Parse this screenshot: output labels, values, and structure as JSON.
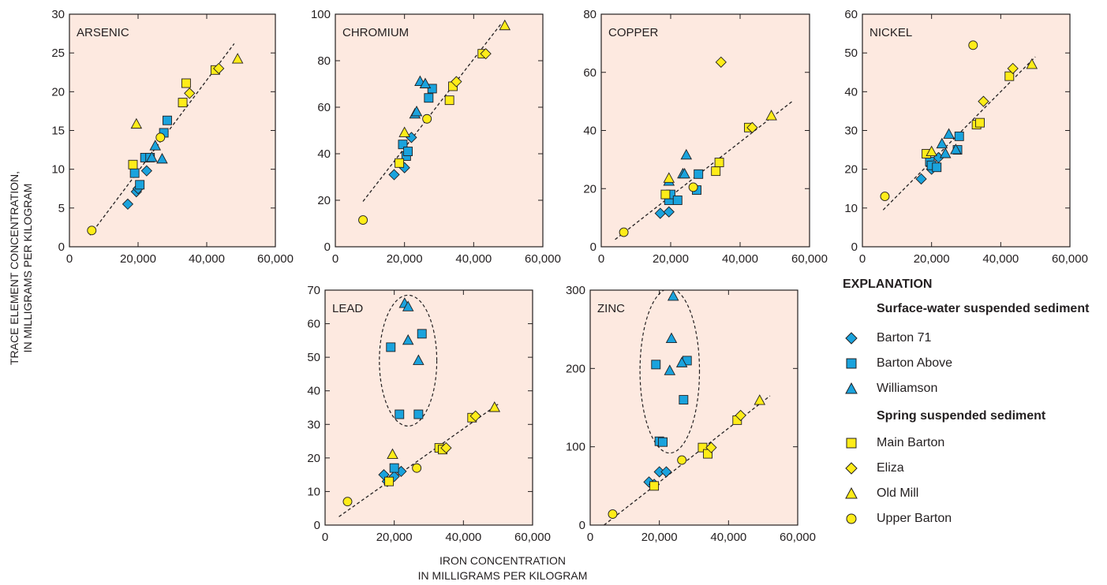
{
  "chart_data": [
    {
      "type": "scatter",
      "title": "ARSENIC",
      "xlim": [
        0,
        60000
      ],
      "ylim": [
        0,
        30
      ],
      "xticks": [
        "0",
        "20,000",
        "40,000",
        "60,000"
      ],
      "yticks": [
        "0",
        "5",
        "10",
        "15",
        "20",
        "25",
        "30"
      ],
      "trendline": [
        [
          6000,
          1.5
        ],
        [
          48000,
          26.2
        ]
      ],
      "ellipse": null,
      "series": [
        {
          "name": "Barton 71",
          "marker": "diamond",
          "points": [
            [
              17000,
              5.5
            ],
            [
              19500,
              7.1
            ],
            [
              20000,
              7.5
            ],
            [
              22500,
              9.8
            ]
          ]
        },
        {
          "name": "Barton Above",
          "marker": "square",
          "points": [
            [
              19000,
              9.5
            ],
            [
              20500,
              8.0
            ],
            [
              22000,
              11.5
            ],
            [
              23500,
              11.5
            ],
            [
              27500,
              14.7
            ],
            [
              28500,
              16.3
            ]
          ]
        },
        {
          "name": "Williamson",
          "marker": "triangle",
          "points": [
            [
              24000,
              11.5
            ],
            [
              25000,
              13.0
            ],
            [
              27000,
              11.3
            ]
          ]
        },
        {
          "name": "Main Barton",
          "marker": "square",
          "points": [
            [
              18500,
              10.6
            ],
            [
              33000,
              18.6
            ],
            [
              34000,
              21.1
            ],
            [
              42500,
              22.8
            ]
          ]
        },
        {
          "name": "Eliza",
          "marker": "diamond",
          "points": [
            [
              35000,
              19.8
            ],
            [
              43500,
              23.0
            ]
          ]
        },
        {
          "name": "Old Mill",
          "marker": "triangle",
          "points": [
            [
              19500,
              15.8
            ],
            [
              49000,
              24.2
            ]
          ]
        },
        {
          "name": "Upper Barton",
          "marker": "circle",
          "points": [
            [
              6500,
              2.1
            ],
            [
              26500,
              14.1
            ]
          ]
        }
      ]
    },
    {
      "type": "scatter",
      "title": "CHROMIUM",
      "xlim": [
        0,
        60000
      ],
      "ylim": [
        0,
        100
      ],
      "xticks": [
        "0",
        "20,000",
        "40,000",
        "60,000"
      ],
      "yticks": [
        "0",
        "20",
        "40",
        "60",
        "80",
        "100"
      ],
      "trendline": [
        [
          8000,
          19.5
        ],
        [
          48000,
          96
        ]
      ],
      "ellipse": null,
      "series": [
        {
          "name": "Barton 71",
          "marker": "diamond",
          "points": [
            [
              17000,
              31
            ],
            [
              20000,
              34
            ],
            [
              22000,
              47
            ]
          ]
        },
        {
          "name": "Barton Above",
          "marker": "square",
          "points": [
            [
              19500,
              44
            ],
            [
              20500,
              39
            ],
            [
              21000,
              41
            ],
            [
              27000,
              64
            ],
            [
              28000,
              68
            ]
          ]
        },
        {
          "name": "Williamson",
          "marker": "triangle",
          "points": [
            [
              23000,
              57
            ],
            [
              23500,
              58
            ],
            [
              24500,
              71
            ],
            [
              26000,
              70
            ]
          ]
        },
        {
          "name": "Main Barton",
          "marker": "square",
          "points": [
            [
              18500,
              36
            ],
            [
              33000,
              63
            ],
            [
              34000,
              69
            ],
            [
              42500,
              83
            ]
          ]
        },
        {
          "name": "Eliza",
          "marker": "diamond",
          "points": [
            [
              35000,
              71
            ],
            [
              43500,
              83
            ]
          ]
        },
        {
          "name": "Old Mill",
          "marker": "triangle",
          "points": [
            [
              20000,
              49
            ],
            [
              49000,
              95
            ]
          ]
        },
        {
          "name": "Upper Barton",
          "marker": "circle",
          "points": [
            [
              8000,
              11.5
            ],
            [
              26500,
              55
            ]
          ]
        }
      ]
    },
    {
      "type": "scatter",
      "title": "COPPER",
      "xlim": [
        0,
        60000
      ],
      "ylim": [
        0,
        80
      ],
      "xticks": [
        "0",
        "20,000",
        "40,000",
        "60,000"
      ],
      "yticks": [
        "0",
        "20",
        "40",
        "60",
        "80"
      ],
      "trendline": [
        [
          4000,
          2.5
        ],
        [
          55000,
          50
        ]
      ],
      "ellipse": null,
      "series": [
        {
          "name": "Barton 71",
          "marker": "diamond",
          "points": [
            [
              17000,
              11.5
            ],
            [
              19500,
              12.0
            ]
          ]
        },
        {
          "name": "Barton Above",
          "marker": "square",
          "points": [
            [
              19500,
              16.0
            ],
            [
              20000,
              18.0
            ],
            [
              22000,
              16.0
            ],
            [
              27500,
              19.5
            ],
            [
              28000,
              25.0
            ]
          ]
        },
        {
          "name": "Williamson",
          "marker": "triangle",
          "points": [
            [
              19500,
              22.5
            ],
            [
              23500,
              25.0
            ],
            [
              24000,
              25.0
            ],
            [
              24500,
              31.5
            ]
          ]
        },
        {
          "name": "Main Barton",
          "marker": "square",
          "points": [
            [
              18500,
              18.0
            ],
            [
              33000,
              26.0
            ],
            [
              34000,
              29.0
            ],
            [
              42500,
              41.0
            ]
          ]
        },
        {
          "name": "Eliza",
          "marker": "diamond",
          "points": [
            [
              34500,
              63.5
            ],
            [
              43500,
              41.0
            ]
          ]
        },
        {
          "name": "Old Mill",
          "marker": "triangle",
          "points": [
            [
              19500,
              23.5
            ],
            [
              49000,
              45.0
            ]
          ]
        },
        {
          "name": "Upper Barton",
          "marker": "circle",
          "points": [
            [
              6500,
              5.0
            ],
            [
              26500,
              20.5
            ]
          ]
        }
      ]
    },
    {
      "type": "scatter",
      "title": "NICKEL",
      "xlim": [
        0,
        60000
      ],
      "ylim": [
        0,
        60
      ],
      "xticks": [
        "0",
        "20,000",
        "40,000",
        "60,000"
      ],
      "yticks": [
        "0",
        "10",
        "20",
        "30",
        "40",
        "50",
        "60"
      ],
      "trendline": [
        [
          6000,
          9.5
        ],
        [
          50000,
          49
        ]
      ],
      "ellipse": null,
      "series": [
        {
          "name": "Barton 71",
          "marker": "diamond",
          "points": [
            [
              17000,
              17.5
            ],
            [
              20000,
              20.0
            ],
            [
              22000,
              23.0
            ]
          ]
        },
        {
          "name": "Barton Above",
          "marker": "square",
          "points": [
            [
              19500,
              22.0
            ],
            [
              20000,
              21.0
            ],
            [
              21500,
              20.5
            ],
            [
              27500,
              25.0
            ],
            [
              28000,
              28.5
            ]
          ]
        },
        {
          "name": "Williamson",
          "marker": "triangle",
          "points": [
            [
              23000,
              26.5
            ],
            [
              24000,
              24.0
            ],
            [
              25000,
              29.0
            ],
            [
              27000,
              25.0
            ]
          ]
        },
        {
          "name": "Main Barton",
          "marker": "square",
          "points": [
            [
              18500,
              24.0
            ],
            [
              33000,
              31.5
            ],
            [
              34000,
              32.0
            ],
            [
              42500,
              44.0
            ]
          ]
        },
        {
          "name": "Eliza",
          "marker": "diamond",
          "points": [
            [
              35000,
              37.5
            ],
            [
              43500,
              46.0
            ]
          ]
        },
        {
          "name": "Old Mill",
          "marker": "triangle",
          "points": [
            [
              20000,
              24.5
            ],
            [
              49000,
              47.0
            ]
          ]
        },
        {
          "name": "Upper Barton",
          "marker": "circle",
          "points": [
            [
              6500,
              13.0
            ],
            [
              32000,
              52.0
            ]
          ]
        }
      ]
    },
    {
      "type": "scatter",
      "title": "LEAD",
      "xlim": [
        0,
        60000
      ],
      "ylim": [
        0,
        70
      ],
      "xticks": [
        "0",
        "20,000",
        "40,000",
        "60,000"
      ],
      "yticks": [
        "0",
        "10",
        "20",
        "30",
        "40",
        "50",
        "60",
        "70"
      ],
      "trendline": [
        [
          4000,
          2.5
        ],
        [
          50000,
          36
        ]
      ],
      "ellipse": {
        "cx": 24000,
        "cy": 49,
        "rx": 8300,
        "ry": 19.5
      },
      "series": [
        {
          "name": "Barton 71",
          "marker": "diamond",
          "points": [
            [
              17000,
              15.0
            ],
            [
              18000,
              13.0
            ],
            [
              20000,
              14.5
            ],
            [
              22000,
              16.0
            ]
          ]
        },
        {
          "name": "Barton Above",
          "marker": "square",
          "points": [
            [
              19000,
              53
            ],
            [
              20000,
              17
            ],
            [
              21500,
              33
            ],
            [
              27000,
              33
            ],
            [
              28000,
              57
            ]
          ]
        },
        {
          "name": "Williamson",
          "marker": "triangle",
          "points": [
            [
              23000,
              66
            ],
            [
              24000,
              65
            ],
            [
              24000,
              55
            ],
            [
              27000,
              49
            ]
          ]
        },
        {
          "name": "Main Barton",
          "marker": "square",
          "points": [
            [
              18500,
              13.0
            ],
            [
              33000,
              23.0
            ],
            [
              34000,
              22.5
            ],
            [
              42500,
              32.0
            ]
          ]
        },
        {
          "name": "Eliza",
          "marker": "diamond",
          "points": [
            [
              35000,
              23.0
            ],
            [
              43500,
              32.5
            ]
          ]
        },
        {
          "name": "Old Mill",
          "marker": "triangle",
          "points": [
            [
              19500,
              21.0
            ],
            [
              49000,
              35.0
            ]
          ]
        },
        {
          "name": "Upper Barton",
          "marker": "circle",
          "points": [
            [
              6500,
              7.0
            ],
            [
              26500,
              17.0
            ]
          ]
        }
      ]
    },
    {
      "type": "scatter",
      "title": "ZINC",
      "xlim": [
        0,
        60000
      ],
      "ylim": [
        0,
        300
      ],
      "xticks": [
        "0",
        "20,000",
        "40,000",
        "60,000"
      ],
      "yticks": [
        "0",
        "100",
        "200",
        "300"
      ],
      "trendline": [
        [
          4000,
          0
        ],
        [
          52000,
          165
        ]
      ],
      "ellipse": {
        "cx": 23000,
        "cy": 197,
        "rx": 8600,
        "ry": 105
      },
      "series": [
        {
          "name": "Barton 71",
          "marker": "diamond",
          "points": [
            [
              17000,
              55
            ],
            [
              18500,
              52
            ],
            [
              20000,
              68
            ],
            [
              22000,
              68
            ]
          ]
        },
        {
          "name": "Barton Above",
          "marker": "square",
          "points": [
            [
              19000,
              205
            ],
            [
              20000,
              107
            ],
            [
              21000,
              106
            ],
            [
              27000,
              160
            ],
            [
              28000,
              210
            ]
          ]
        },
        {
          "name": "Williamson",
          "marker": "triangle",
          "points": [
            [
              23000,
              197
            ],
            [
              23500,
              238
            ],
            [
              24000,
              292
            ],
            [
              26500,
              207
            ]
          ]
        },
        {
          "name": "Main Barton",
          "marker": "square",
          "points": [
            [
              18500,
              50
            ],
            [
              32500,
              99
            ],
            [
              34000,
              91
            ],
            [
              42500,
              134
            ]
          ]
        },
        {
          "name": "Eliza",
          "marker": "diamond",
          "points": [
            [
              35000,
              99
            ],
            [
              43500,
              140
            ]
          ]
        },
        {
          "name": "Old Mill",
          "marker": "triangle",
          "points": [
            [
              49000,
              159
            ]
          ]
        },
        {
          "name": "Upper Barton",
          "marker": "circle",
          "points": [
            [
              6500,
              14
            ],
            [
              26500,
              83
            ]
          ]
        }
      ]
    }
  ],
  "axis_titles": {
    "y_line1": "TRACE ELEMENT CONCENTRATION,",
    "y_line2": "IN MILLIGRAMS PER KILOGRAM",
    "x_line1": "IRON   CONCENTRATION",
    "x_line2": "IN MILLIGRAMS PER KILOGRAM"
  },
  "legend": {
    "title": "EXPLANATION",
    "group_surface": "Surface-water suspended sediment",
    "group_spring": "Spring suspended sediment",
    "items": [
      {
        "label": "Barton 71",
        "marker": "diamond",
        "color": "#1aa3dd"
      },
      {
        "label": "Barton Above",
        "marker": "square",
        "color": "#1aa3dd"
      },
      {
        "label": "Williamson",
        "marker": "triangle",
        "color": "#1aa3dd"
      },
      {
        "label": "Main Barton",
        "marker": "square",
        "color": "#ffec19"
      },
      {
        "label": "Eliza",
        "marker": "diamond",
        "color": "#ffec19"
      },
      {
        "label": "Old Mill",
        "marker": "triangle",
        "color": "#ffec19"
      },
      {
        "label": "Upper Barton",
        "marker": "circle",
        "color": "#ffec19"
      }
    ]
  },
  "colors": {
    "panel_background": "#fde9e0",
    "surface_water": "#1aa3dd",
    "spring": "#ffec19",
    "ink": "#231f20"
  }
}
